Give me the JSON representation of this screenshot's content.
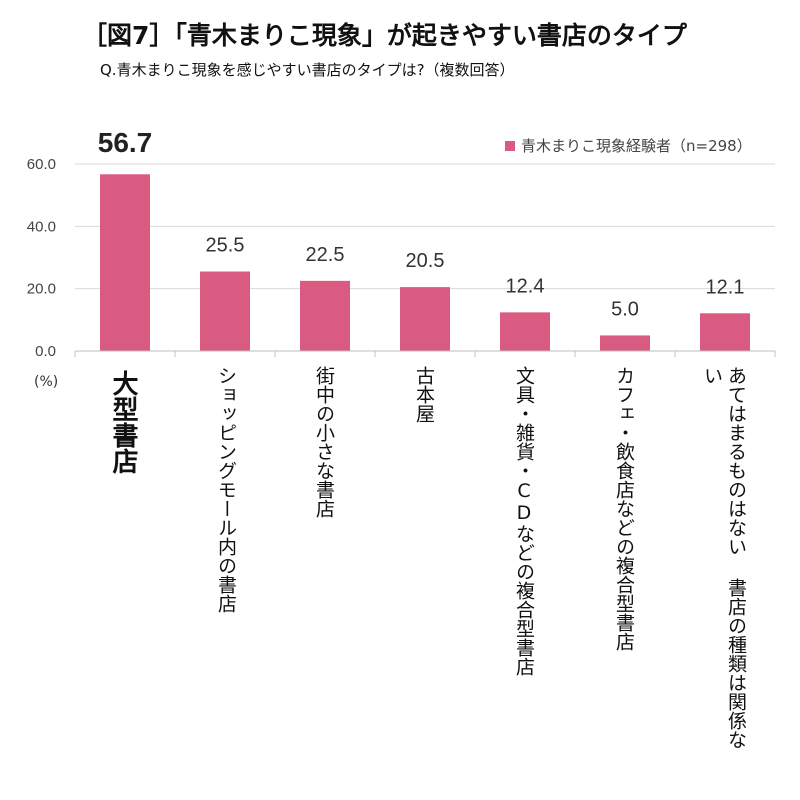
{
  "title": "［図7］「青木まりこ現象」が起きやすい書店のタイプ",
  "subtitle": "Q.青木まりこ現象を感じやすい書店のタイプは?（複数回答）",
  "legend": "青木まりこ現象経験者（n=298）",
  "unit": "(%)",
  "colors": {
    "bar": "#d95b82",
    "grid": "#d9d9d9",
    "axis": "#bfbfbf"
  },
  "chart_data": {
    "type": "bar",
    "categories": [
      "大型書店",
      "ショッピングモール内の書店",
      "街中の小さな書店",
      "古本屋",
      "文具・雑貨・CDなどの複合型書店",
      "カフェ・飲食店などの複合型書店",
      "あてはまるものはない 書店の種類は関係ない"
    ],
    "series": [
      {
        "name": "青木まりこ現象経験者（n=298）",
        "values": [
          56.7,
          25.5,
          22.5,
          20.5,
          12.4,
          5.0,
          12.1
        ]
      }
    ],
    "value_labels": [
      "56.7",
      "25.5",
      "22.5",
      "20.5",
      "12.4",
      "5.0",
      "12.1"
    ],
    "yticks": [
      "0.0",
      "20.0",
      "40.0",
      "60.0"
    ],
    "ylim": [
      0,
      60
    ],
    "grid": true,
    "legend_position": "top-right"
  }
}
